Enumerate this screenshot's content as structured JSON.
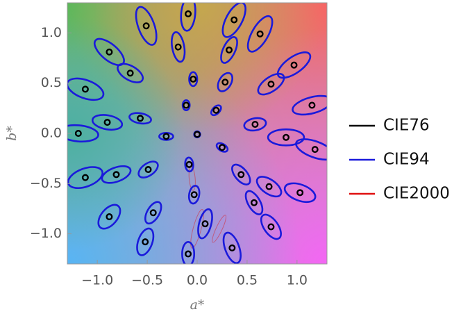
{
  "chart_data": {
    "type": "scatter",
    "x_label": "a*",
    "y_label": "b*",
    "xlim": [
      -1.3,
      1.3
    ],
    "ylim": [
      -1.3,
      1.3
    ],
    "xticks": [
      {
        "value": -1.0,
        "label": "−1.0"
      },
      {
        "value": -0.5,
        "label": "−0.5"
      },
      {
        "value": 0.0,
        "label": "0.0"
      },
      0.5,
      {
        "value": 1.0,
        "label": "1.0"
      }
    ],
    "yticks": [
      {
        "value": -1.0,
        "label": "−1.0"
      },
      {
        "value": -0.5,
        "label": "−0.5"
      },
      {
        "value": 0.0,
        "label": "0.0"
      },
      0.5,
      {
        "value": 1.0,
        "label": "1.0"
      }
    ],
    "series": [
      {
        "name": "CIE76",
        "color": "#000000",
        "x": [
          -0.09,
          0.37,
          -0.51,
          0.63,
          -0.19,
          0.32,
          -0.88,
          0.97,
          -0.67,
          -0.04,
          0.28,
          0.74,
          -1.12,
          -0.11,
          1.15,
          0.19,
          -0.57,
          -0.9,
          0.58,
          -1.19,
          -0.31,
          0.89,
          0.0,
          0.25,
          1.18,
          -0.08,
          -0.49,
          0.44,
          -0.81,
          -1.12,
          0.72,
          1.03,
          -0.03,
          0.57,
          -0.44,
          -0.88,
          0.08,
          0.74,
          -0.52,
          0.35,
          -0.09
        ],
        "y": [
          1.19,
          1.13,
          1.07,
          0.99,
          0.86,
          0.83,
          0.81,
          0.68,
          0.6,
          0.54,
          0.51,
          0.49,
          0.44,
          0.28,
          0.28,
          0.23,
          0.15,
          0.11,
          0.09,
          0.0,
          -0.03,
          -0.04,
          -0.01,
          -0.14,
          -0.16,
          -0.31,
          -0.36,
          -0.41,
          -0.41,
          -0.44,
          -0.53,
          -0.59,
          -0.61,
          -0.69,
          -0.79,
          -0.83,
          -0.9,
          -0.93,
          -1.08,
          -1.14,
          -1.2
        ]
      },
      {
        "name": "CIE94",
        "color": "#1a1adb",
        "rx": [
          0.17,
          0.19,
          0.2,
          0.2,
          0.15,
          0.14,
          0.18,
          0.19,
          0.14,
          0.07,
          0.1,
          0.15,
          0.19,
          0.05,
          0.2,
          0.06,
          0.11,
          0.15,
          0.11,
          0.2,
          0.07,
          0.18,
          0.03,
          0.06,
          0.2,
          0.07,
          0.11,
          0.12,
          0.15,
          0.18,
          0.14,
          0.16,
          0.09,
          0.13,
          0.12,
          0.14,
          0.15,
          0.14,
          0.14,
          0.16,
          0.12
        ],
        "ry": [
          0.07,
          0.08,
          0.08,
          0.08,
          0.06,
          0.06,
          0.08,
          0.08,
          0.07,
          0.04,
          0.06,
          0.07,
          0.09,
          0.035,
          0.08,
          0.035,
          0.05,
          0.07,
          0.06,
          0.08,
          0.035,
          0.08,
          0.03,
          0.035,
          0.08,
          0.04,
          0.06,
          0.06,
          0.07,
          0.09,
          0.07,
          0.08,
          0.05,
          0.06,
          0.06,
          0.08,
          0.06,
          0.07,
          0.07,
          0.07,
          0.06
        ],
        "angle": [
          85,
          62,
          110,
          60,
          100,
          65,
          140,
          35,
          150,
          90,
          60,
          35,
          160,
          90,
          15,
          45,
          170,
          170,
          10,
          175,
          0,
          0,
          0,
          150,
          -20,
          95,
          35,
          -50,
          20,
          20,
          -35,
          -20,
          80,
          -60,
          60,
          50,
          75,
          -55,
          70,
          -70,
          90
        ]
      },
      {
        "name": "CIE2000",
        "color": "#e01010",
        "x": [
          -0.05,
          0.0,
          0.22
        ],
        "y": [
          -0.45,
          -0.95,
          -0.95
        ],
        "rx": [
          0.12,
          0.2,
          0.15
        ],
        "ry": [
          0.03,
          0.04,
          0.03
        ],
        "angle": [
          95,
          75,
          65
        ]
      }
    ]
  }
}
